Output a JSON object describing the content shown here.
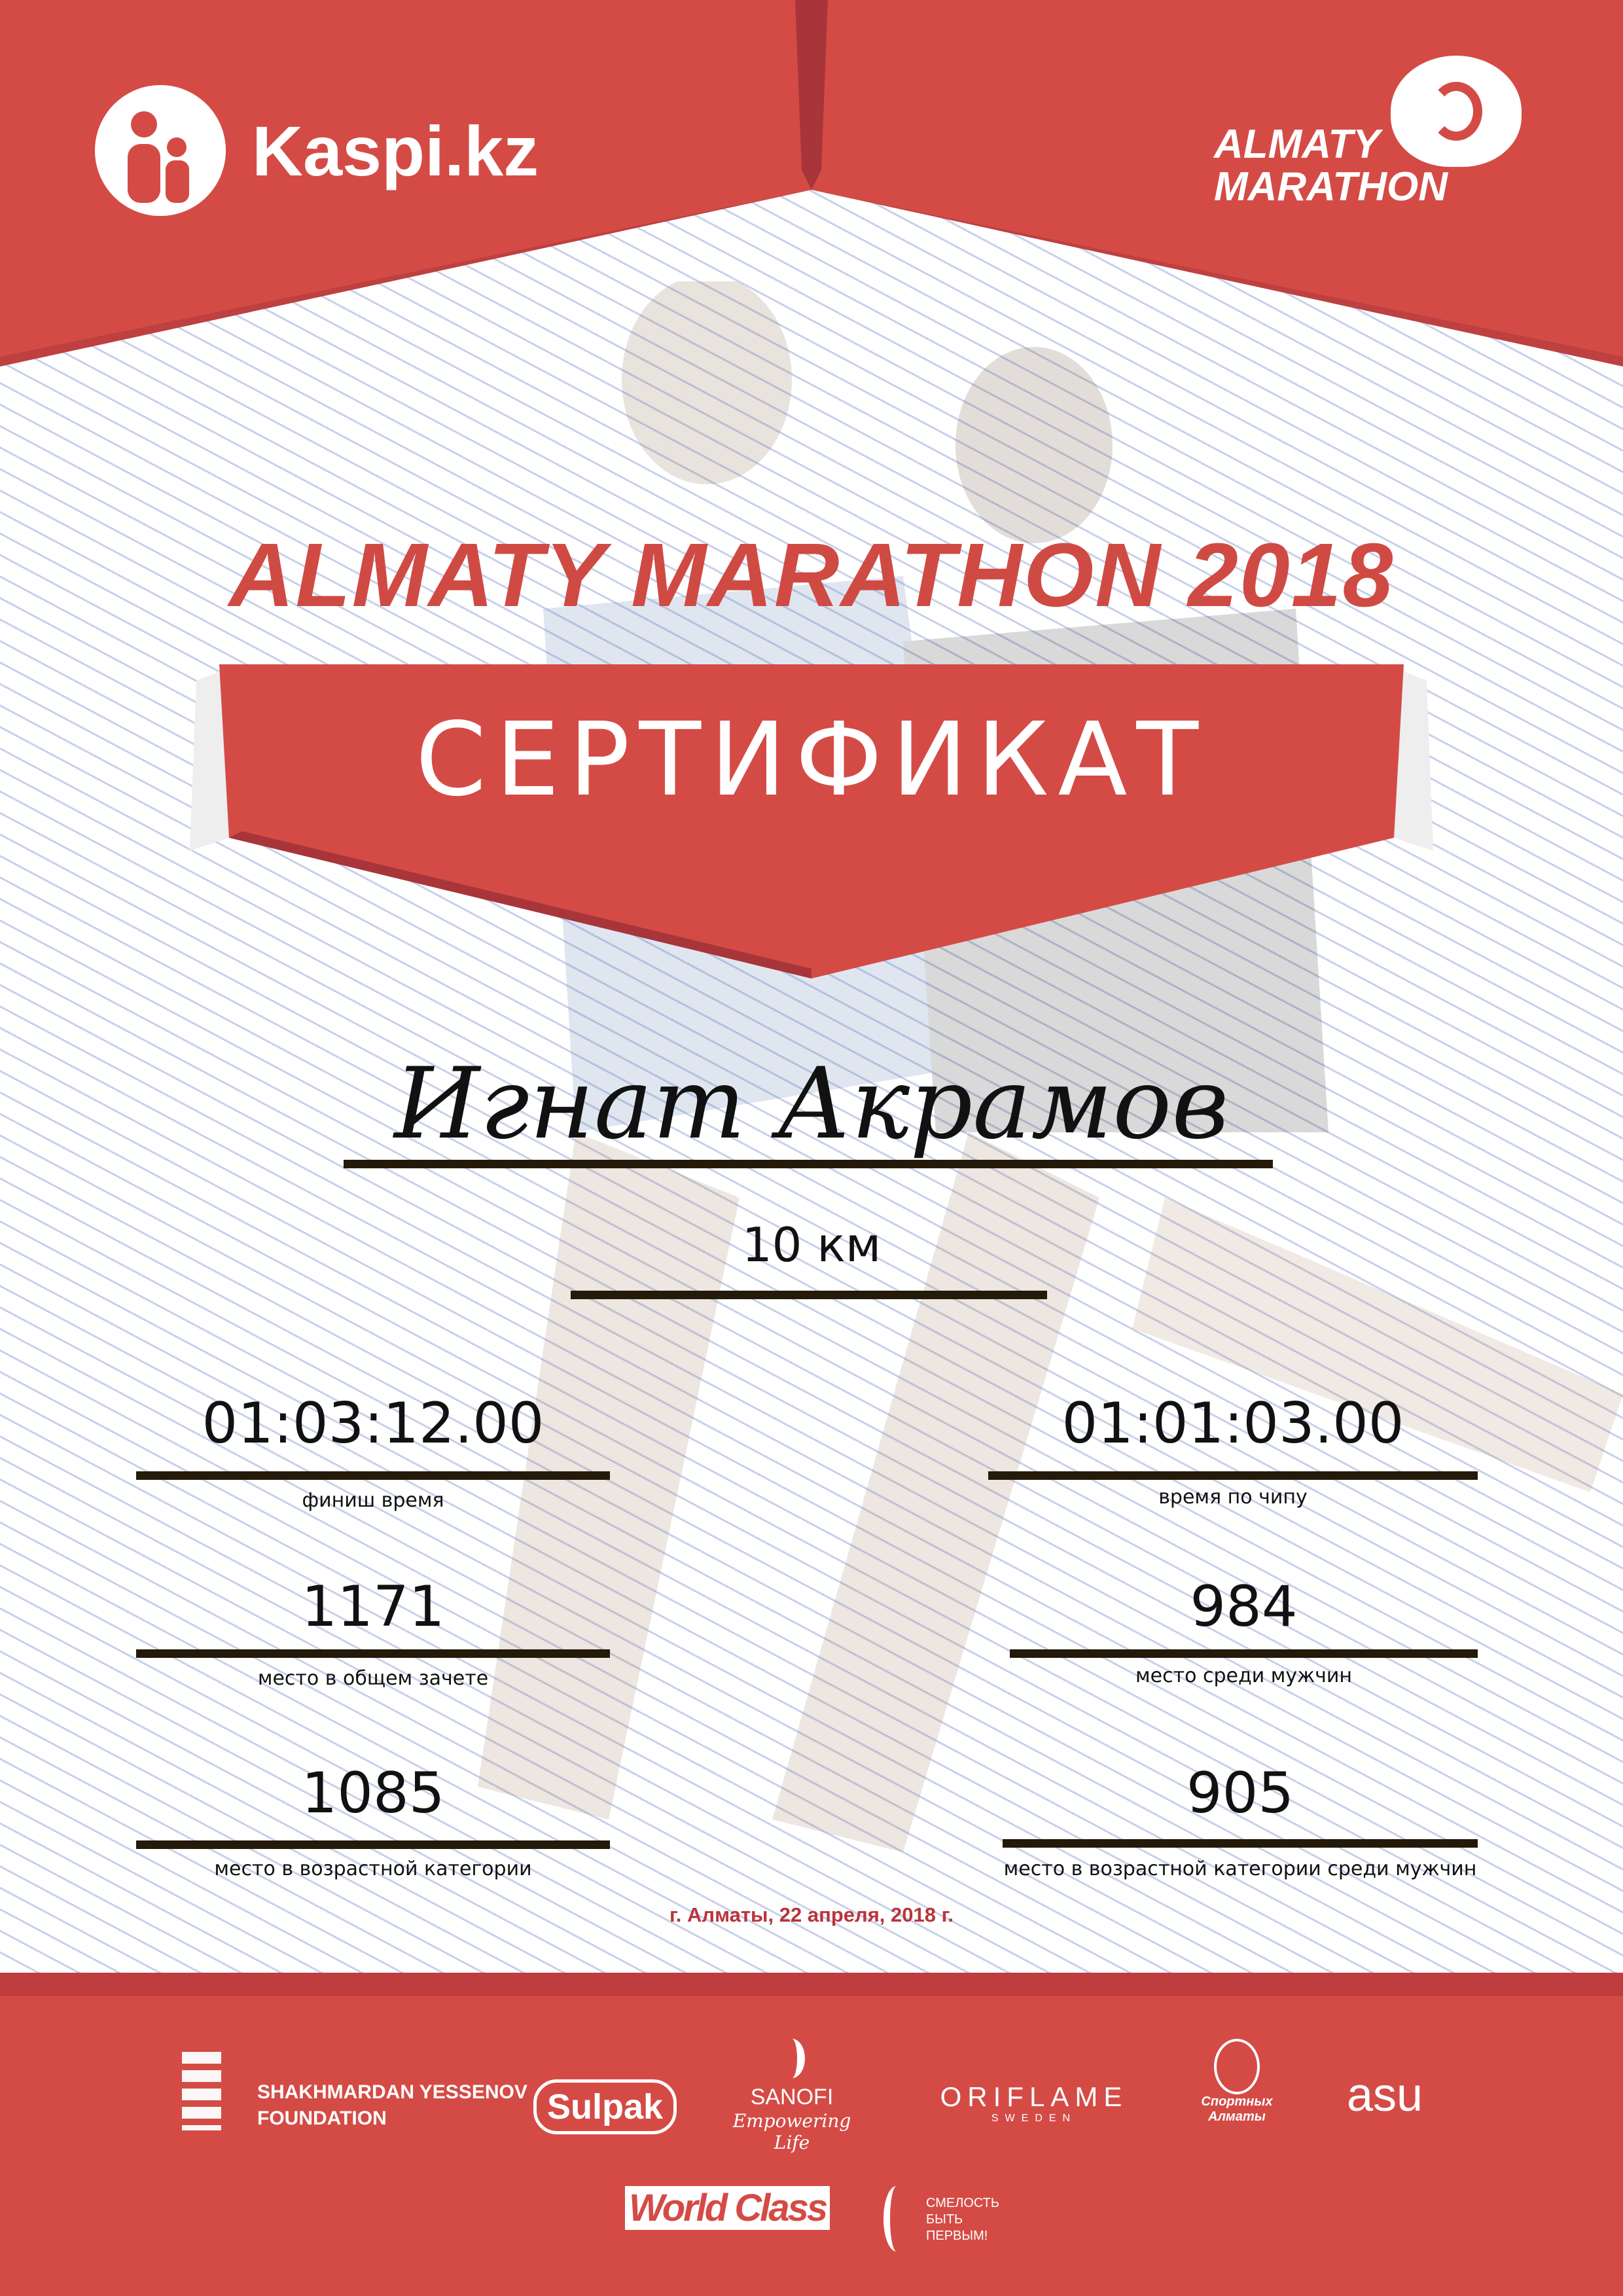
{
  "header": {
    "sponsor_logo": "Kaspi.kz",
    "event_logo": [
      "ALMATY",
      "MARATHON"
    ]
  },
  "title": "ALMATY MARATHON 2018",
  "banner": "СЕРТИФИКАТ",
  "participant_name": "Игнат Акрамов",
  "distance": "10 км",
  "results": [
    {
      "value": "01:03:12.00",
      "label": "финиш время"
    },
    {
      "value": "01:01:03.00",
      "label": "время по чипу"
    },
    {
      "value": "1171",
      "label": "место в общем зачете"
    },
    {
      "value": "984",
      "label": "место среди мужчин"
    },
    {
      "value": "1085",
      "label": "место в возрастной категории"
    },
    {
      "value": "905",
      "label": "место в возрастной категории среди мужчин"
    }
  ],
  "date_line": "г. Алматы, 22 апреля, 2018 г.",
  "sponsors": {
    "yessenov": [
      "SHAKHMARDAN YESSENOV",
      "FOUNDATION"
    ],
    "sulpak": "Sulpak",
    "sanofi": [
      "SANOFI",
      "Empowering Life"
    ],
    "oriflame": [
      "ORIFLAME",
      "SWEDEN"
    ],
    "sport_almaty": [
      "Спортных",
      "Алматы"
    ],
    "asu": "asu",
    "worldclass": "World Class",
    "fund": [
      "СМЕЛОСТЬ",
      "БЫТЬ",
      "ПЕРВЫМ!"
    ]
  },
  "colors": {
    "brand_red": "#d44b46",
    "dark_red": "#b8353a",
    "line": "#231a0a"
  }
}
